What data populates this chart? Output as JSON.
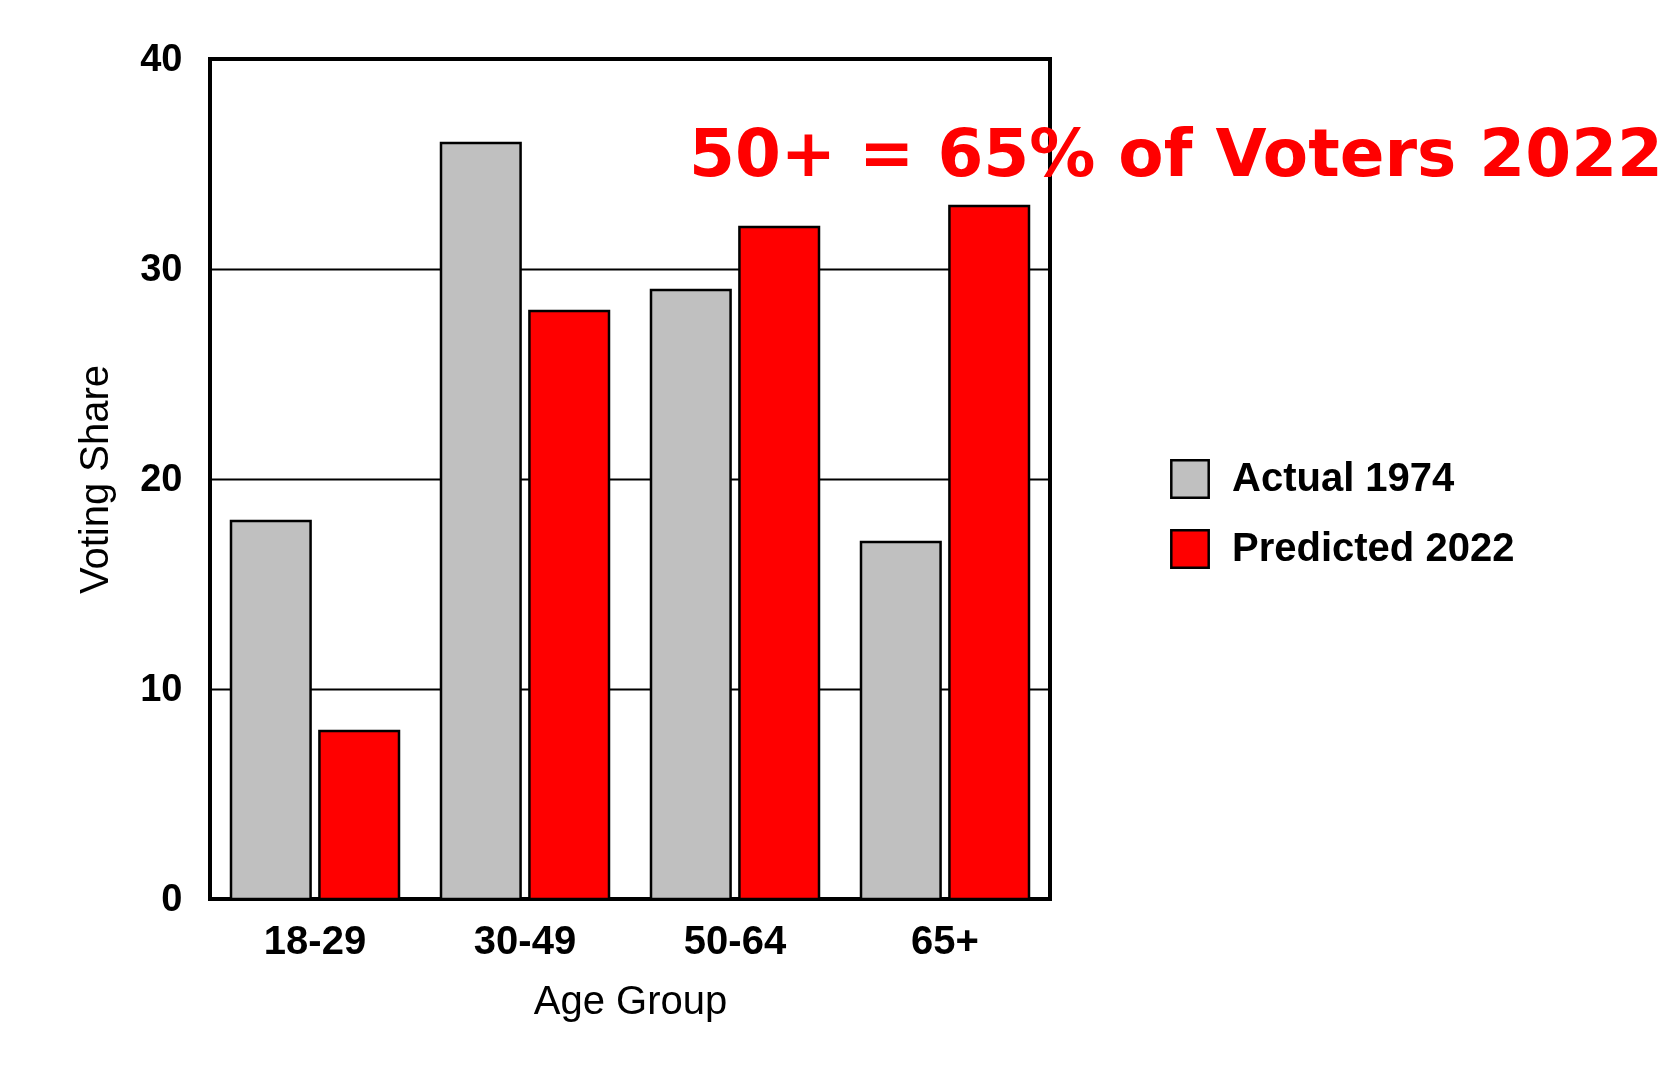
{
  "chart_data": {
    "type": "bar",
    "title": "50+ = 65% of Voters 2022",
    "xlabel": "Age Group",
    "ylabel": "Voting Share",
    "categories": [
      "18-29",
      "30-49",
      "50-64",
      "65+"
    ],
    "series": [
      {
        "name": "Actual 1974",
        "color": "#c0c0c0",
        "values": [
          18,
          36,
          29,
          17
        ]
      },
      {
        "name": "Predicted 2022",
        "color": "#ff0000",
        "values": [
          8,
          28,
          32,
          33
        ]
      }
    ],
    "ylim": [
      0,
      40
    ],
    "yticks": [
      0,
      10,
      20,
      30,
      40
    ],
    "grid": "y",
    "legend": "right"
  }
}
